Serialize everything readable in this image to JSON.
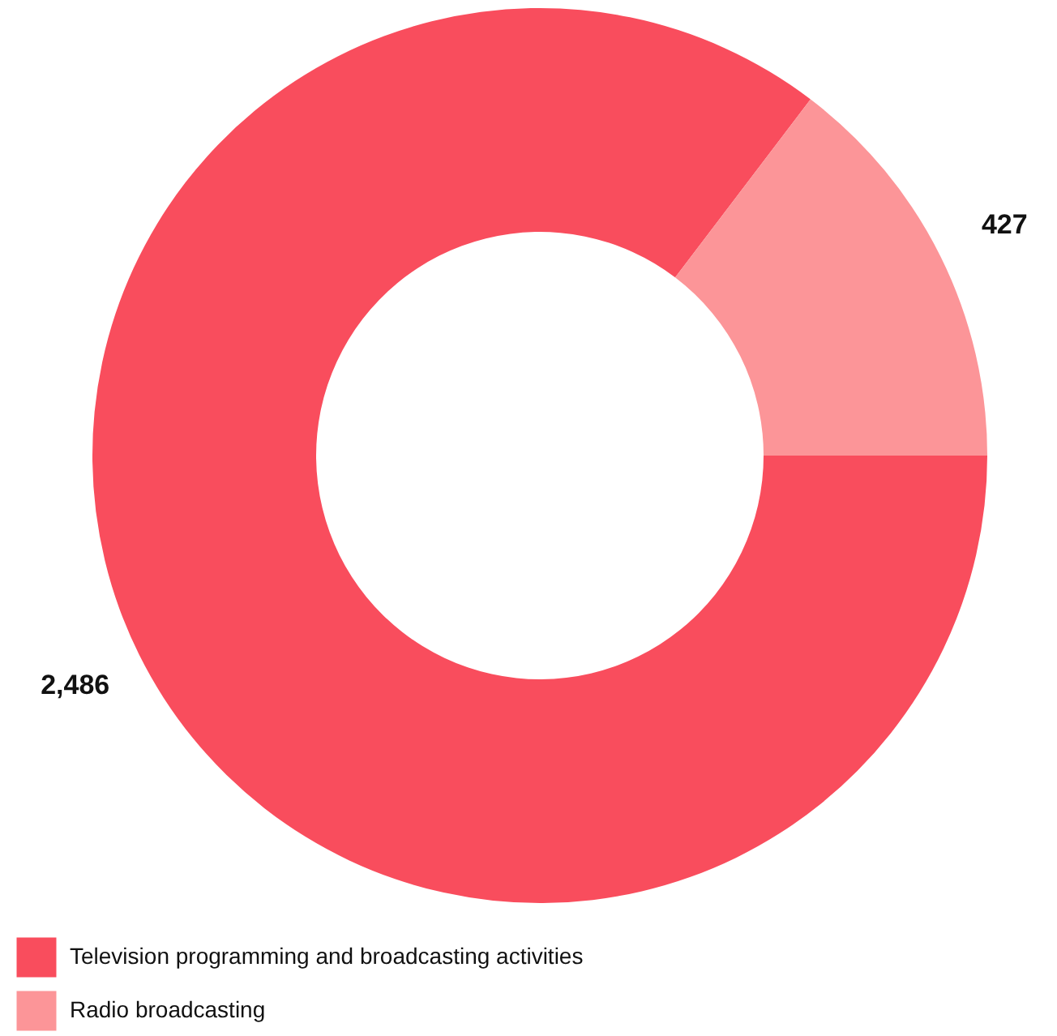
{
  "chart_data": {
    "type": "donut",
    "categories": [
      "Television programming and broadcasting activities",
      "Radio broadcasting"
    ],
    "values": [
      2486,
      427
    ],
    "colors": [
      "#f94d5d",
      "#fc9598"
    ],
    "value_labels": [
      "2,486",
      "427"
    ],
    "legend": "bottom left"
  }
}
